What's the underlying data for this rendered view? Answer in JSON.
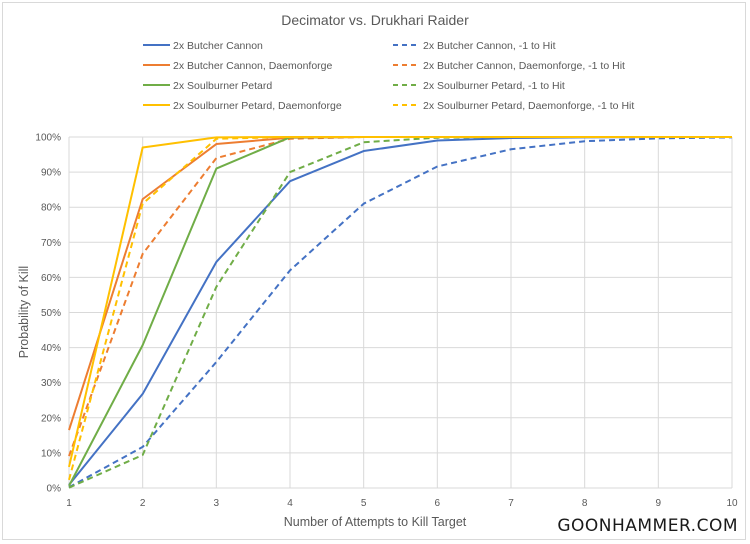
{
  "watermark": "GOONHAMMER.COM",
  "chart_data": {
    "type": "line",
    "title": "Decimator vs. Drukhari Raider",
    "xlabel": "Number of Attempts to Kill Target",
    "ylabel": "Probability of Kill",
    "x": [
      1,
      2,
      3,
      4,
      5,
      6,
      7,
      8,
      9,
      10
    ],
    "x_tick_labels": [
      "1",
      "2",
      "3",
      "4",
      "5",
      "6",
      "7",
      "8",
      "9",
      "10"
    ],
    "xlim": [
      1,
      10
    ],
    "ylim": [
      0,
      1
    ],
    "y_ticks": [
      0,
      0.1,
      0.2,
      0.3,
      0.4,
      0.5,
      0.6,
      0.7,
      0.8,
      0.9,
      1.0
    ],
    "y_tick_labels": [
      "0%",
      "10%",
      "20%",
      "30%",
      "40%",
      "50%",
      "60%",
      "70%",
      "80%",
      "90%",
      "100%"
    ],
    "grid": true,
    "legend_position": "top",
    "series": [
      {
        "name": "2x Butcher Cannon",
        "color": "#4472c4",
        "dashed": false,
        "values": [
          0.009,
          0.268,
          0.644,
          0.874,
          0.96,
          0.99,
          0.997,
          0.999,
          1.0,
          1.0
        ]
      },
      {
        "name": "2x Butcher Cannon, -1 to Hit",
        "color": "#4472c4",
        "dashed": true,
        "values": [
          0.002,
          0.117,
          0.359,
          0.62,
          0.81,
          0.916,
          0.965,
          0.988,
          0.996,
          0.999
        ]
      },
      {
        "name": "2x Butcher Cannon, Daemonforge",
        "color": "#ed7d31",
        "dashed": false,
        "values": [
          0.165,
          0.823,
          0.98,
          0.998,
          1.0,
          1.0,
          1.0,
          1.0,
          1.0,
          1.0
        ]
      },
      {
        "name": "2x Butcher Cannon, Daemonforge, -1 to Hit",
        "color": "#ed7d31",
        "dashed": true,
        "values": [
          0.091,
          0.667,
          0.94,
          0.995,
          1.0,
          1.0,
          1.0,
          1.0,
          1.0,
          1.0
        ]
      },
      {
        "name": "2x Soulburner Petard",
        "color": "#70ad47",
        "dashed": false,
        "values": [
          0.006,
          0.407,
          0.91,
          0.999,
          1.0,
          1.0,
          1.0,
          1.0,
          1.0,
          1.0
        ]
      },
      {
        "name": "2x Soulburner Petard, -1 to Hit",
        "color": "#70ad47",
        "dashed": true,
        "values": [
          0.001,
          0.094,
          0.573,
          0.9,
          0.985,
          0.998,
          1.0,
          1.0,
          1.0,
          1.0
        ]
      },
      {
        "name": "2x Soulburner Petard, Daemonforge",
        "color": "#ffc000",
        "dashed": false,
        "values": [
          0.06,
          0.97,
          0.999,
          1.0,
          1.0,
          1.0,
          1.0,
          1.0,
          1.0,
          1.0
        ]
      },
      {
        "name": "2x Soulburner Petard, Daemonforge, -1 to Hit",
        "color": "#ffc000",
        "dashed": true,
        "values": [
          0.023,
          0.81,
          0.995,
          1.0,
          1.0,
          1.0,
          1.0,
          1.0,
          1.0,
          1.0
        ]
      }
    ],
    "legend_order": [
      0,
      1,
      2,
      3,
      4,
      5,
      6,
      7
    ]
  }
}
